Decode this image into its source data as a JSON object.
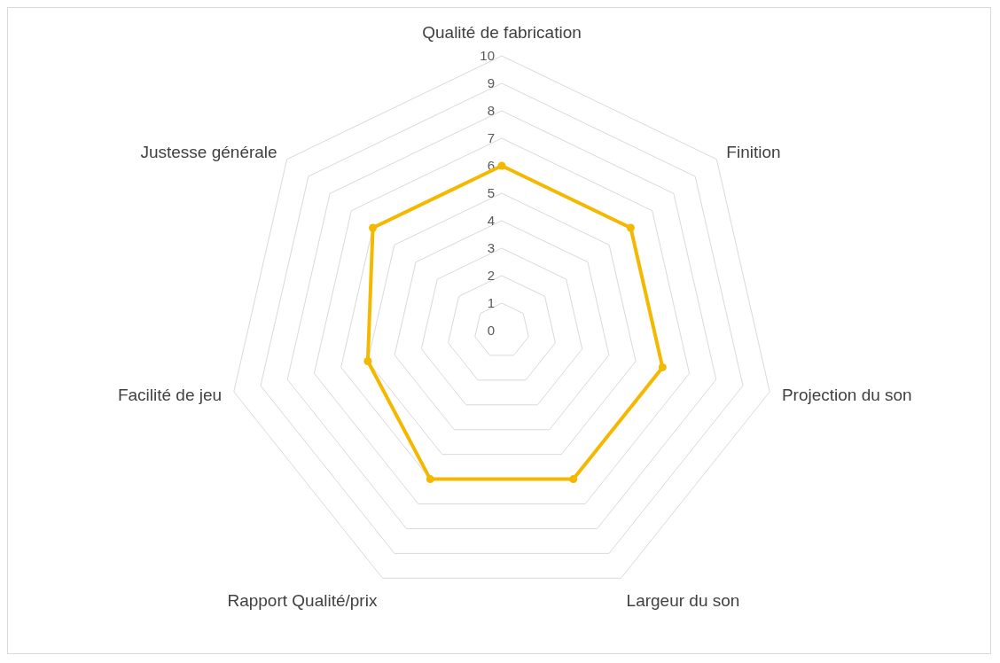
{
  "chart_data": {
    "type": "radar",
    "categories": [
      "Qualité de fabrication",
      "Finition",
      "Projection du son",
      "Largeur du son",
      "Rapport Qualité/prix",
      "Facilité de jeu",
      "Justesse générale"
    ],
    "series": [
      {
        "color": "#f5b800",
        "values": [
          6,
          6,
          6,
          6,
          6,
          5,
          6
        ]
      }
    ],
    "ylim": [
      0,
      10
    ],
    "yticks": [
      0,
      1,
      2,
      3,
      4,
      5,
      6,
      7,
      8,
      9,
      10
    ],
    "grid": true,
    "marker": "circle"
  }
}
